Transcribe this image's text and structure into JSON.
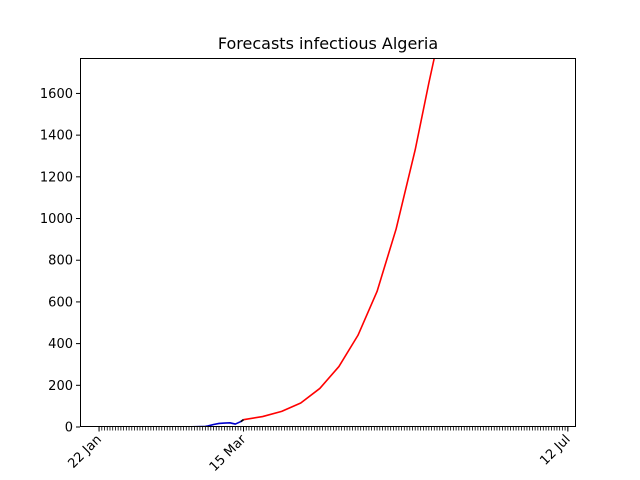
{
  "chart_data": {
    "type": "line",
    "title": "Forecasts infectious Algeria",
    "xlabel": "",
    "ylabel": "",
    "x_axis": {
      "type": "date",
      "start": "2020-01-22",
      "end": "2020-07-12",
      "labeled_ticks": [
        {
          "date": "2020-01-22",
          "label": "22 Jan"
        },
        {
          "date": "2020-03-15",
          "label": "15 Mar"
        },
        {
          "date": "2020-07-12",
          "label": "12 Jul"
        }
      ],
      "minor_ticks": "daily",
      "label_rotation_deg": 45
    },
    "ylim": [
      0,
      1770
    ],
    "yticks": [
      0,
      200,
      400,
      600,
      800,
      1000,
      1200,
      1400,
      1600
    ],
    "xlim": [
      "2020-01-15",
      "2020-07-15"
    ],
    "grid": false,
    "legend": false,
    "series": [
      {
        "color": "#0000cc",
        "points": [
          [
            "2020-01-22",
            0
          ],
          [
            "2020-02-10",
            0
          ],
          [
            "2020-02-24",
            0
          ],
          [
            "2020-02-25",
            1
          ],
          [
            "2020-03-01",
            3
          ],
          [
            "2020-03-02",
            5
          ],
          [
            "2020-03-04",
            12
          ],
          [
            "2020-03-06",
            17
          ],
          [
            "2020-03-08",
            19
          ],
          [
            "2020-03-10",
            20
          ],
          [
            "2020-03-12",
            14
          ],
          [
            "2020-03-13",
            20
          ],
          [
            "2020-03-14",
            26
          ],
          [
            "2020-03-15",
            35
          ]
        ]
      },
      {
        "color": "#ff0000",
        "points": [
          [
            "2020-03-15",
            35
          ],
          [
            "2020-03-22",
            50
          ],
          [
            "2020-03-29",
            75
          ],
          [
            "2020-04-05",
            115
          ],
          [
            "2020-04-12",
            185
          ],
          [
            "2020-04-19",
            290
          ],
          [
            "2020-04-26",
            440
          ],
          [
            "2020-05-03",
            650
          ],
          [
            "2020-05-10",
            950
          ],
          [
            "2020-05-17",
            1330
          ],
          [
            "2020-05-22",
            1650
          ],
          [
            "2020-05-24",
            1770
          ]
        ]
      },
      {
        "color": "#000000",
        "points": [
          [
            "2020-03-14",
            26
          ],
          [
            "2020-03-15",
            35
          ]
        ]
      }
    ]
  }
}
